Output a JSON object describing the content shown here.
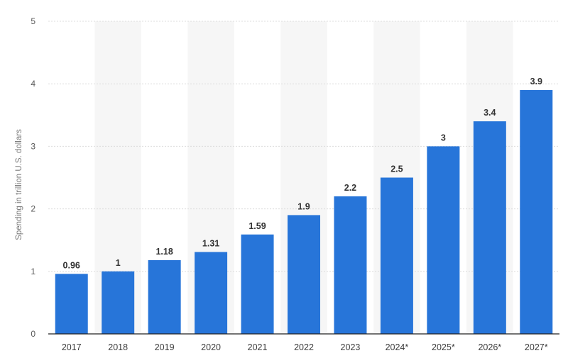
{
  "chart_data": {
    "type": "bar",
    "title": "",
    "xlabel": "",
    "ylabel": "Spending in trillion U.S. dollars",
    "categories": [
      "2017",
      "2018",
      "2019",
      "2020",
      "2021",
      "2022",
      "2023",
      "2024*",
      "2025*",
      "2026*",
      "2027*"
    ],
    "values": [
      0.96,
      1,
      1.18,
      1.31,
      1.59,
      1.9,
      2.2,
      2.5,
      3,
      3.4,
      3.9
    ],
    "value_labels": [
      "0.96",
      "1",
      "1.18",
      "1.31",
      "1.59",
      "1.9",
      "2.2",
      "2.5",
      "3",
      "3.4",
      "3.9"
    ],
    "ylim": [
      0,
      5
    ],
    "yticks": [
      0,
      1,
      2,
      3,
      4,
      5
    ],
    "ytick_labels": [
      "0",
      "1",
      "2",
      "3",
      "4",
      "5"
    ],
    "grid": true,
    "legend": "none",
    "colors": {
      "bar": "#2775d9",
      "band": "#f6f6f6",
      "grid": "#dcdcdc",
      "axis": "#222222"
    }
  }
}
